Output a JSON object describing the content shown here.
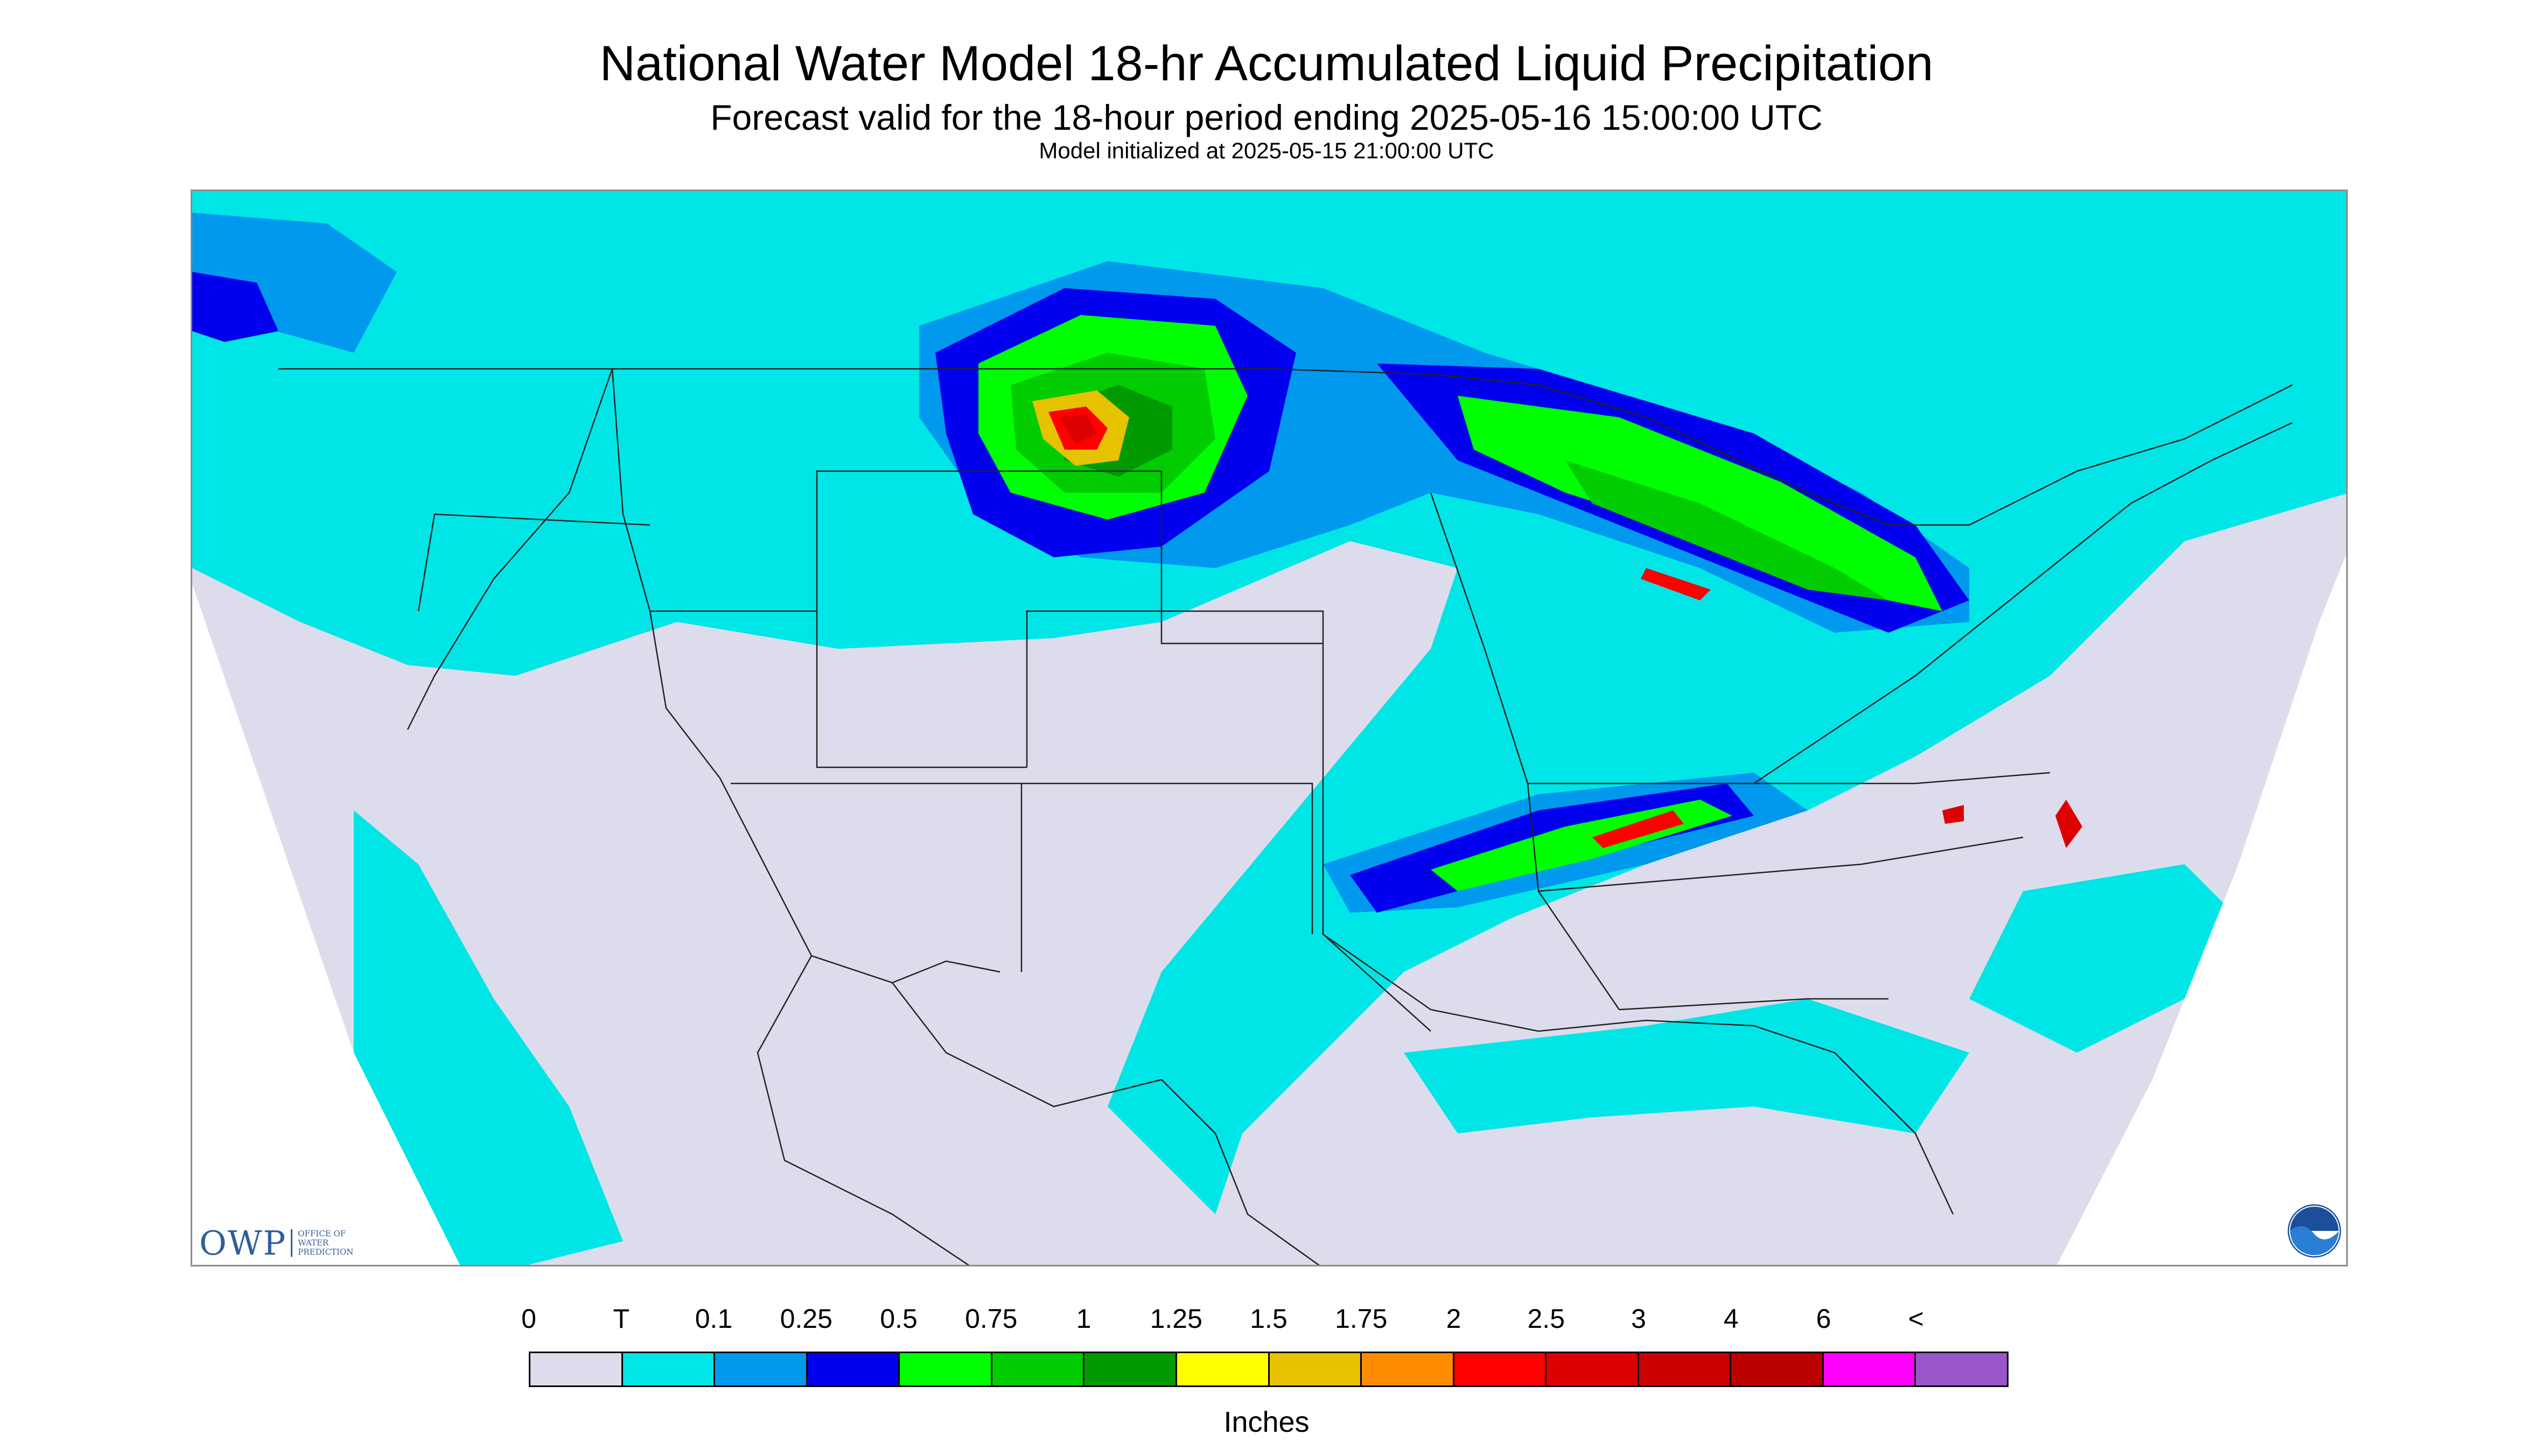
{
  "header": {
    "title": "National Water Model 18-hr Accumulated Liquid Precipitation",
    "subtitle": "Forecast valid for the 18-hour period ending 2025-05-16 15:00:00 UTC",
    "init": "Model initialized at 2025-05-15 21:00:00 UTC"
  },
  "logos": {
    "owp_mark": "OWP",
    "owp_text": [
      "OFFICE OF",
      "WATER",
      "PREDICTION"
    ],
    "noaa": "NOAA"
  },
  "legend": {
    "labels": [
      "0",
      "T",
      "0.1",
      "0.25",
      "0.5",
      "0.75",
      "1",
      "1.25",
      "1.5",
      "1.75",
      "2",
      "2.5",
      "3",
      "4",
      "6",
      "<"
    ],
    "colors": [
      "#dcdcec",
      "#00e6e6",
      "#0099ee",
      "#0000ee",
      "#00ff00",
      "#00cc00",
      "#009900",
      "#ffff00",
      "#e6c200",
      "#ff8c00",
      "#ff0000",
      "#dd0000",
      "#cc0000",
      "#bb0000",
      "#ff00ff",
      "#9955cc"
    ],
    "units": "Inches"
  },
  "map": {
    "domain_fill": "#dcdcec",
    "outside_fill": "#ffffff",
    "boundary_color": "#222222"
  }
}
